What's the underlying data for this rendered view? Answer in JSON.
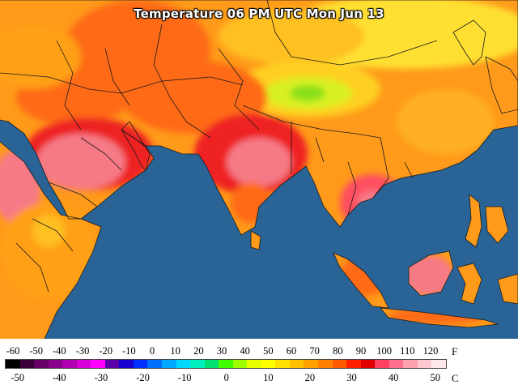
{
  "title": "Temperature 06 PM UTC Mon Jun 13",
  "legend": {
    "f_unit": "F",
    "c_unit": "C",
    "f_ticks": [
      "-60",
      "-50",
      "-40",
      "-30",
      "-20",
      "-10",
      "0",
      "10",
      "20",
      "30",
      "40",
      "50",
      "60",
      "70",
      "80",
      "90",
      "100",
      "110",
      "120"
    ],
    "c_ticks": [
      "-50",
      "-40",
      "-30",
      "-20",
      "-10",
      "0",
      "10",
      "20",
      "30",
      "40",
      "50"
    ],
    "f_range": [
      -60,
      120
    ],
    "c_range": [
      -50,
      50
    ],
    "colors": [
      "#000000",
      "#3a003a",
      "#660066",
      "#8a008a",
      "#b000b0",
      "#d800d8",
      "#ff00ff",
      "#5a00a8",
      "#1800d0",
      "#0030ff",
      "#0070ff",
      "#00a8ff",
      "#00d8ff",
      "#00f0c0",
      "#00e070",
      "#40ff00",
      "#a0ff00",
      "#e8ff00",
      "#ffff00",
      "#ffe000",
      "#ffc000",
      "#ffa000",
      "#ff8000",
      "#ff5a00",
      "#ff2000",
      "#e00000",
      "#ff4060",
      "#ff7090",
      "#ffa0b0",
      "#ffc8d0",
      "#ffe8ec"
    ]
  },
  "map_colors": {
    "ocean": "#2a6496",
    "land_hot": "#ff6a14",
    "land_warm": "#ff9a1a",
    "land_mild": "#ffc020",
    "land_cool": "#ffe030",
    "land_cooler": "#d8f020",
    "land_cold": "#8ae01a",
    "extreme_red": "#ee2020",
    "extreme_pink": "#f57a86",
    "border": "#1a1a1a"
  }
}
